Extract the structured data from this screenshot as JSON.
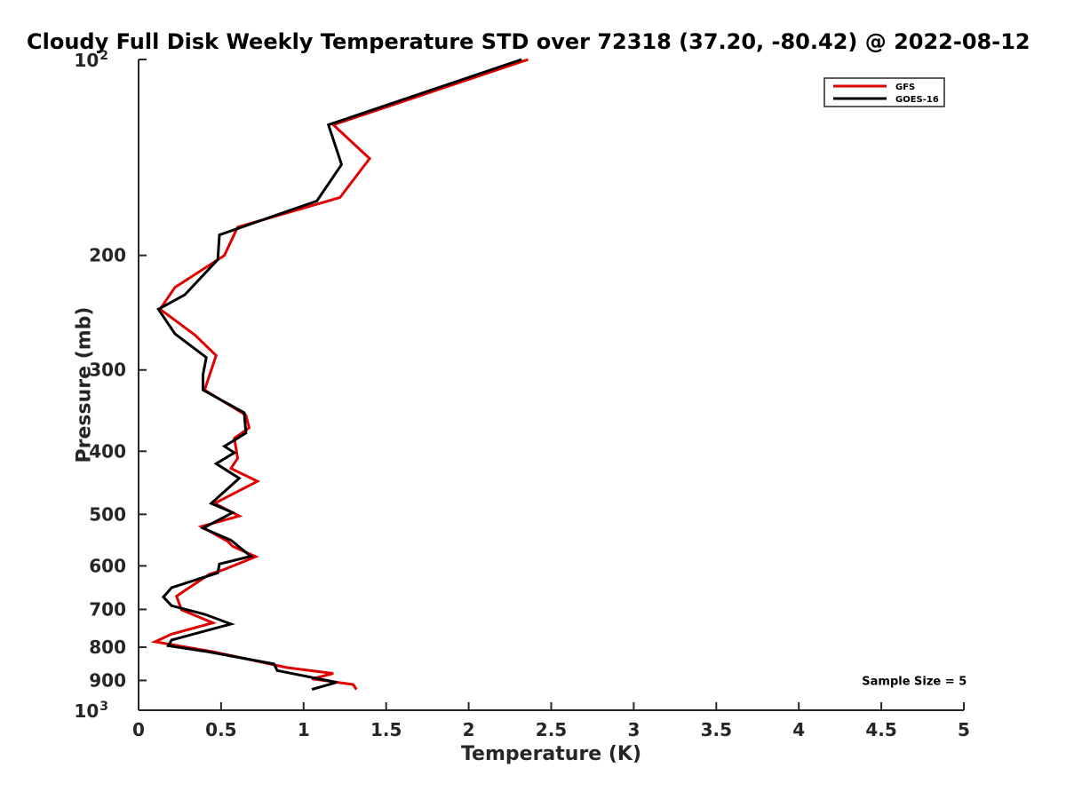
{
  "chart_data": {
    "type": "line",
    "title": "Cloudy Full Disk Weekly Temperature STD over 72318 (37.20, -80.42) @ 2022-08-12",
    "xlabel": "Temperature (K)",
    "ylabel": "Pressure (mb)",
    "xlim": [
      0,
      5
    ],
    "ylim": [
      100,
      1000
    ],
    "y_scale": "log",
    "y_reversed": true,
    "grid": false,
    "legend_position": "top-right",
    "x_ticks": [
      0,
      0.5,
      1,
      1.5,
      2,
      2.5,
      3,
      3.5,
      4,
      4.5,
      5
    ],
    "x_tick_labels": [
      "0",
      "0.5",
      "1",
      "1.5",
      "2",
      "2.5",
      "3",
      "3.5",
      "4",
      "4.5",
      "5"
    ],
    "y_ticks": [
      200,
      300,
      400,
      500,
      600,
      700,
      800,
      900
    ],
    "y_tick_labels": [
      "200",
      "300",
      "400",
      "500",
      "600",
      "700",
      "800",
      "900"
    ],
    "y_tick_power_labels": [
      {
        "value": 100,
        "base": "10",
        "exp": "2"
      },
      {
        "value": 1000,
        "base": "10",
        "exp": "3"
      }
    ],
    "series": [
      {
        "name": "GFS",
        "color": "#e00000",
        "points": [
          [
            2.36,
            100
          ],
          [
            1.18,
            126
          ],
          [
            1.4,
            142
          ],
          [
            1.22,
            163
          ],
          [
            0.6,
            181
          ],
          [
            0.52,
            200
          ],
          [
            0.22,
            224
          ],
          [
            0.13,
            242
          ],
          [
            0.34,
            265
          ],
          [
            0.47,
            285
          ],
          [
            0.4,
            322
          ],
          [
            0.65,
            352
          ],
          [
            0.67,
            368
          ],
          [
            0.58,
            382
          ],
          [
            0.6,
            410
          ],
          [
            0.56,
            425
          ],
          [
            0.72,
            445
          ],
          [
            0.46,
            481
          ],
          [
            0.61,
            503
          ],
          [
            0.38,
            522
          ],
          [
            0.54,
            550
          ],
          [
            0.57,
            560
          ],
          [
            0.71,
            581
          ],
          [
            0.51,
            609
          ],
          [
            0.43,
            618
          ],
          [
            0.28,
            655
          ],
          [
            0.23,
            668
          ],
          [
            0.26,
            701
          ],
          [
            0.45,
            734
          ],
          [
            0.2,
            764
          ],
          [
            0.1,
            785
          ],
          [
            0.45,
            813
          ],
          [
            0.9,
            860
          ],
          [
            1.18,
            878
          ],
          [
            1.05,
            895
          ],
          [
            1.3,
            913
          ],
          [
            1.32,
            929
          ]
        ]
      },
      {
        "name": "GOES-16",
        "color": "#000000",
        "points": [
          [
            2.32,
            100
          ],
          [
            1.15,
            126
          ],
          [
            1.23,
            145
          ],
          [
            1.08,
            165
          ],
          [
            0.49,
            186
          ],
          [
            0.48,
            203
          ],
          [
            0.28,
            230
          ],
          [
            0.12,
            242
          ],
          [
            0.22,
            264
          ],
          [
            0.41,
            287
          ],
          [
            0.39,
            305
          ],
          [
            0.39,
            322
          ],
          [
            0.64,
            349
          ],
          [
            0.65,
            375
          ],
          [
            0.52,
            393
          ],
          [
            0.58,
            402
          ],
          [
            0.47,
            418
          ],
          [
            0.61,
            440
          ],
          [
            0.44,
            481
          ],
          [
            0.57,
            497
          ],
          [
            0.39,
            525
          ],
          [
            0.56,
            548
          ],
          [
            0.68,
            580
          ],
          [
            0.49,
            596
          ],
          [
            0.48,
            615
          ],
          [
            0.2,
            648
          ],
          [
            0.15,
            670
          ],
          [
            0.2,
            691
          ],
          [
            0.4,
            712
          ],
          [
            0.56,
            737
          ],
          [
            0.2,
            780
          ],
          [
            0.18,
            796
          ],
          [
            0.42,
            813
          ],
          [
            0.82,
            849
          ],
          [
            0.84,
            869
          ],
          [
            1.2,
            906
          ],
          [
            1.05,
            929
          ]
        ]
      }
    ],
    "annotations": [
      {
        "text": "Sample Size = 5",
        "x": 4.7,
        "y": 900
      }
    ]
  }
}
